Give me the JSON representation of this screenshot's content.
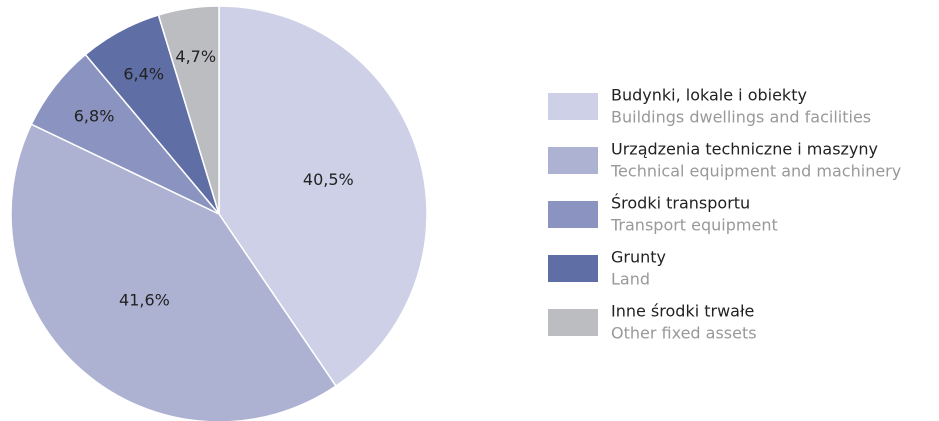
{
  "chart_data": {
    "type": "pie",
    "categories": [
      "Budynki, lokale i obiekty",
      "Urządzenia techniczne i maszyny",
      "Środki transportu",
      "Grunty",
      "Inne środki trwałe"
    ],
    "categories_en": [
      "Buildings dwellings and facilities",
      "Technical equipment and machinery",
      "Transport equipment",
      "Land",
      "Other fixed assets"
    ],
    "values": [
      40.5,
      41.6,
      6.8,
      6.4,
      4.7
    ],
    "value_labels": [
      "40,5%",
      "41,6%",
      "6,8%",
      "6,4%",
      "4,7%"
    ],
    "colors": [
      "#cdd0e6",
      "#aeb2d2",
      "#8b93c0",
      "#5f6ea5",
      "#bcbdc0"
    ],
    "legend": "right"
  }
}
